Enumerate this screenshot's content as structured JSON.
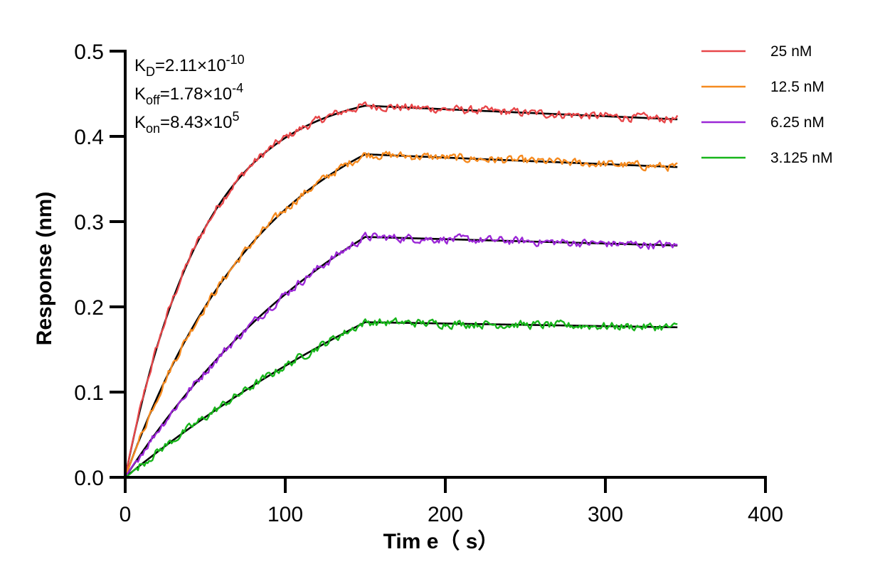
{
  "chart_data": {
    "type": "line",
    "title": "",
    "xlabel": "Tim e（ s）",
    "ylabel": "Response (nm)",
    "xlim": [
      0,
      400
    ],
    "ylim": [
      0,
      0.5
    ],
    "x_ticks": [
      0,
      100,
      200,
      300,
      400
    ],
    "x_tick_labels": [
      "0",
      "100",
      "200",
      "300",
      "400"
    ],
    "y_ticks": [
      0,
      0.1,
      0.2,
      0.3,
      0.4,
      0.5
    ],
    "y_tick_labels": [
      "0.0",
      "0.1",
      "0.2",
      "0.3",
      "0.4",
      "0.5"
    ],
    "grid": false,
    "legend_position": "top-right",
    "association_end_s": 150,
    "end_s": 345,
    "series": [
      {
        "name": "25 nM",
        "color": "#e8474a",
        "plateau": 0.436,
        "end_value": 0.42,
        "k_obs": 0.0205
      },
      {
        "name": "12.5 nM",
        "color": "#f58a1f",
        "plateau": 0.379,
        "end_value": 0.364,
        "k_obs": 0.0113
      },
      {
        "name": "6.25 nM",
        "color": "#9b27d6",
        "plateau": 0.282,
        "end_value": 0.272,
        "k_obs": 0.0061
      },
      {
        "name": "3.125 nM",
        "color": "#17b51a",
        "plateau": 0.182,
        "end_value": 0.176,
        "k_obs": 0.0032
      }
    ],
    "fit_color": "#000000",
    "annotations": [
      {
        "label": "K",
        "sub": "D",
        "value": "=2.11×10",
        "sup": "-10"
      },
      {
        "label": "K",
        "sub": "off",
        "value": "=1.78×10",
        "sup": "-4"
      },
      {
        "label": "K",
        "sub": "on",
        "value": "=8.43×10",
        "sup": "5"
      }
    ]
  }
}
